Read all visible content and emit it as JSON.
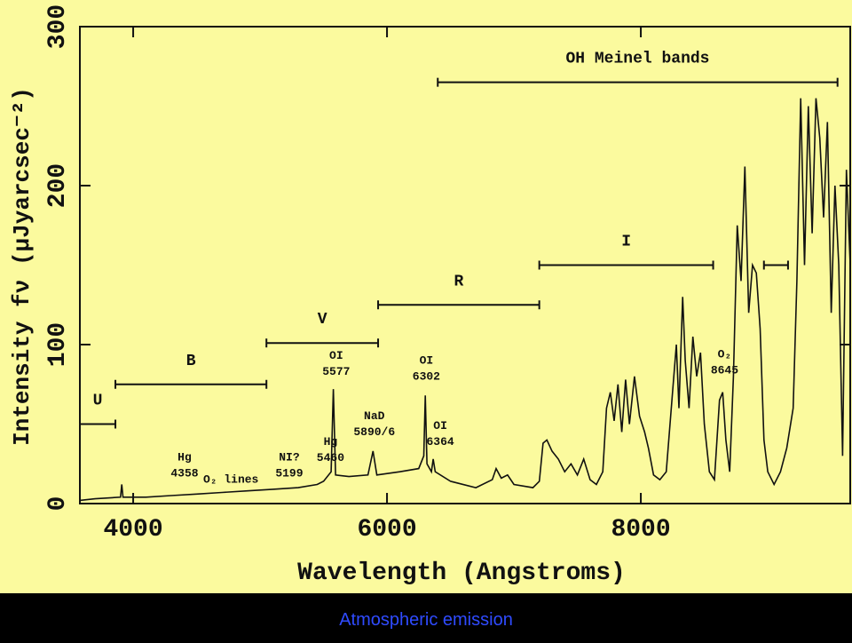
{
  "chart_data": {
    "type": "line",
    "caption": "Atmospheric emission",
    "x_label": "Wavelength (Angstroms)",
    "y_label": "Intensity fν (μJyarcsec⁻²)",
    "xlim": [
      3580,
      9650
    ],
    "ylim": [
      0,
      300
    ],
    "xticks": [
      4000,
      6000,
      8000
    ],
    "yticks": [
      0,
      100,
      200,
      300
    ],
    "color": "#111111",
    "x": [
      3580,
      3700,
      3900,
      3910,
      3920,
      4100,
      4300,
      4500,
      4700,
      4900,
      5100,
      5300,
      5450,
      5500,
      5560,
      5577,
      5595,
      5700,
      5850,
      5890,
      5920,
      6100,
      6250,
      6290,
      6302,
      6315,
      6350,
      6364,
      6380,
      6500,
      6700,
      6830,
      6860,
      6900,
      6950,
      7000,
      7150,
      7200,
      7230,
      7260,
      7300,
      7350,
      7400,
      7450,
      7500,
      7550,
      7600,
      7650,
      7700,
      7730,
      7760,
      7790,
      7820,
      7850,
      7880,
      7910,
      7950,
      7990,
      8030,
      8060,
      8100,
      8150,
      8200,
      8250,
      8280,
      8300,
      8330,
      8350,
      8380,
      8410,
      8440,
      8470,
      8500,
      8540,
      8580,
      8620,
      8645,
      8670,
      8700,
      8730,
      8760,
      8790,
      8820,
      8850,
      8880,
      8910,
      8940,
      8970,
      9000,
      9050,
      9100,
      9150,
      9200,
      9230,
      9260,
      9290,
      9320,
      9350,
      9380,
      9410,
      9440,
      9470,
      9500,
      9530,
      9560,
      9590,
      9620,
      9650
    ],
    "values": [
      2,
      3,
      4,
      12,
      4,
      4,
      5,
      6,
      7,
      8,
      9,
      10,
      12,
      14,
      20,
      72,
      18,
      17,
      18,
      33,
      18,
      20,
      22,
      30,
      68,
      25,
      20,
      28,
      20,
      14,
      10,
      15,
      22,
      16,
      18,
      12,
      10,
      14,
      38,
      40,
      33,
      28,
      20,
      25,
      18,
      28,
      15,
      12,
      20,
      60,
      70,
      52,
      75,
      45,
      78,
      50,
      80,
      55,
      45,
      35,
      18,
      15,
      20,
      70,
      100,
      60,
      130,
      90,
      60,
      105,
      80,
      95,
      50,
      20,
      15,
      65,
      70,
      40,
      20,
      80,
      175,
      140,
      212,
      120,
      150,
      145,
      110,
      40,
      20,
      12,
      20,
      35,
      60,
      140,
      255,
      150,
      250,
      170,
      255,
      230,
      180,
      240,
      120,
      200,
      150,
      30,
      210,
      150
    ],
    "bands": [
      {
        "label": "U",
        "segments": [
          [
            3580,
            3860
          ]
        ],
        "y": 50
      },
      {
        "label": "B",
        "segments": [
          [
            3860,
            5050
          ]
        ],
        "y": 75
      },
      {
        "label": "V",
        "segments": [
          [
            5050,
            5930
          ]
        ],
        "y": 101
      },
      {
        "label": "R",
        "segments": [
          [
            5930,
            7200
          ]
        ],
        "y": 125
      },
      {
        "label": "I",
        "segments": [
          [
            7200,
            8570
          ],
          [
            8970,
            9160
          ]
        ],
        "y": 150
      },
      {
        "label": "OH Meinel bands",
        "segments": [
          [
            6400,
            9550
          ]
        ],
        "y": 265
      }
    ],
    "line_labels": [
      {
        "lines": [
          "Hg",
          "4358"
        ],
        "x": 4405,
        "y": 27
      },
      {
        "lines": [
          "O₂ lines"
        ],
        "x": 4770,
        "y": 13
      },
      {
        "lines": [
          "NI?",
          "5199"
        ],
        "x": 5230,
        "y": 27
      },
      {
        "lines": [
          "Hg",
          "5460"
        ],
        "x": 5555,
        "y": 37
      },
      {
        "lines": [
          "OI",
          "5577"
        ],
        "x": 5600,
        "y": 91
      },
      {
        "lines": [
          "NaD",
          "5890/6"
        ],
        "x": 5900,
        "y": 53
      },
      {
        "lines": [
          "OI",
          "6302"
        ],
        "x": 6310,
        "y": 88
      },
      {
        "lines": [
          "OI",
          "6364"
        ],
        "x": 6420,
        "y": 47
      },
      {
        "lines": [
          "O₂",
          "8645"
        ],
        "x": 8660,
        "y": 92
      }
    ]
  }
}
